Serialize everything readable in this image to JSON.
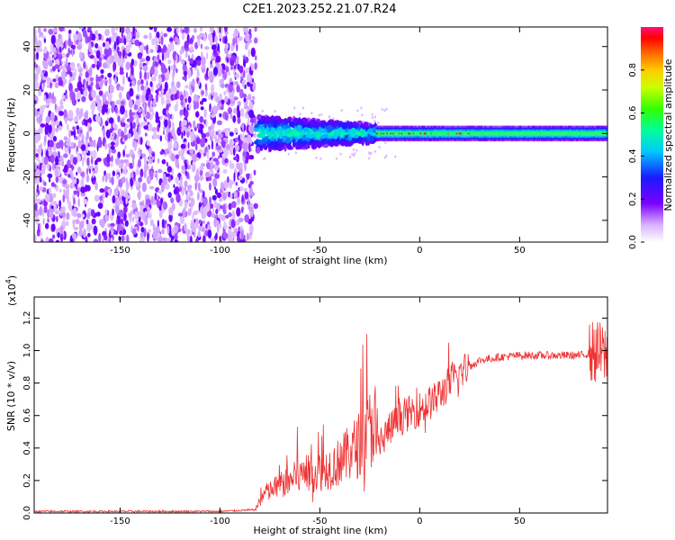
{
  "title": "C2E1.2023.252.21.07.R24",
  "chart_data": [
    {
      "type": "heatmap",
      "xlabel": "Height of straight line (km)",
      "ylabel": "Frequency (Hz)",
      "xlim": [
        -193,
        94
      ],
      "ylim": [
        -50,
        49
      ],
      "xticks": [
        -150,
        -100,
        -50,
        0,
        50
      ],
      "yticks": [
        -40,
        -20,
        0,
        20,
        40
      ],
      "colorbar": {
        "label": "Normalized spectral amplitude",
        "range": [
          0,
          1
        ],
        "ticks": [
          0.0,
          0.2,
          0.4,
          0.6,
          0.8
        ]
      },
      "regions": [
        {
          "x_range": [
            -193,
            -82
          ],
          "description_values": {
            "freq_span": [
              -50,
              49
            ],
            "amplitude": [
              0.05,
              0.2
            ]
          }
        },
        {
          "x_range": [
            -82,
            -22
          ],
          "description_values": {
            "freq_span": [
              -10,
              10
            ],
            "amplitude": [
              0.1,
              0.45
            ]
          }
        },
        {
          "x_range": [
            -22,
            94
          ],
          "description_values": {
            "freq_span": [
              -3,
              3
            ],
            "amplitude": [
              0.3,
              0.9
            ]
          }
        }
      ]
    },
    {
      "type": "line",
      "xlabel": "Height of straight line (km)",
      "ylabel": "SNR (10 * v/v)",
      "yscale_note": "(x10",
      "yscale_exp": "4",
      "yscale_close": ")",
      "xlim": [
        -193,
        94
      ],
      "ylim": [
        0,
        1.33
      ],
      "xticks": [
        -150,
        -100,
        -50,
        0,
        50
      ],
      "yticks": [
        0.0,
        0.2,
        0.4,
        0.6,
        0.8,
        1.0,
        1.2
      ],
      "color": "#ee3333",
      "trend": [
        [
          -193,
          0.01
        ],
        [
          -100,
          0.01
        ],
        [
          -82,
          0.02
        ],
        [
          -78,
          0.08
        ],
        [
          -70,
          0.12
        ],
        [
          -60,
          0.16
        ],
        [
          -50,
          0.18
        ],
        [
          -40,
          0.22
        ],
        [
          -30,
          0.3
        ],
        [
          -22,
          0.4
        ],
        [
          -15,
          0.52
        ],
        [
          -8,
          0.6
        ],
        [
          0,
          0.64
        ],
        [
          8,
          0.7
        ],
        [
          15,
          0.8
        ],
        [
          22,
          0.88
        ],
        [
          30,
          0.94
        ],
        [
          40,
          0.96
        ],
        [
          50,
          0.97
        ],
        [
          60,
          0.97
        ],
        [
          70,
          0.97
        ],
        [
          80,
          0.97
        ],
        [
          88,
          0.99
        ],
        [
          94,
          0.97
        ]
      ]
    }
  ]
}
